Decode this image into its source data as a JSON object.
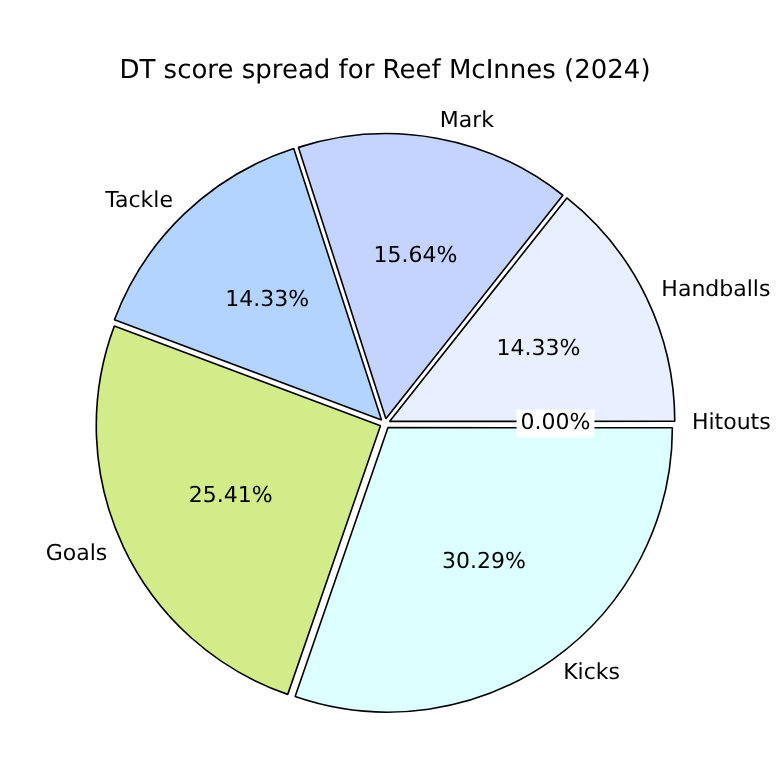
{
  "chart_data": {
    "type": "pie",
    "title": "DT score spread for Reef McInnes (2024)",
    "categories": [
      "Kicks",
      "Goals",
      "Tackle",
      "Mark",
      "Handballs",
      "Hitouts"
    ],
    "values": [
      30.29,
      25.41,
      14.33,
      15.64,
      14.33,
      0
    ],
    "colors": [
      "#dcffff",
      "#d2ec8a",
      "#b3d4ff",
      "#c4d4ff",
      "#e8f0ff",
      "#f0f0f0"
    ],
    "value_labels": [
      "30.29%",
      "25.41%",
      "14.33%",
      "15.64%",
      "14.33%",
      "0.00%"
    ],
    "legend": false
  }
}
